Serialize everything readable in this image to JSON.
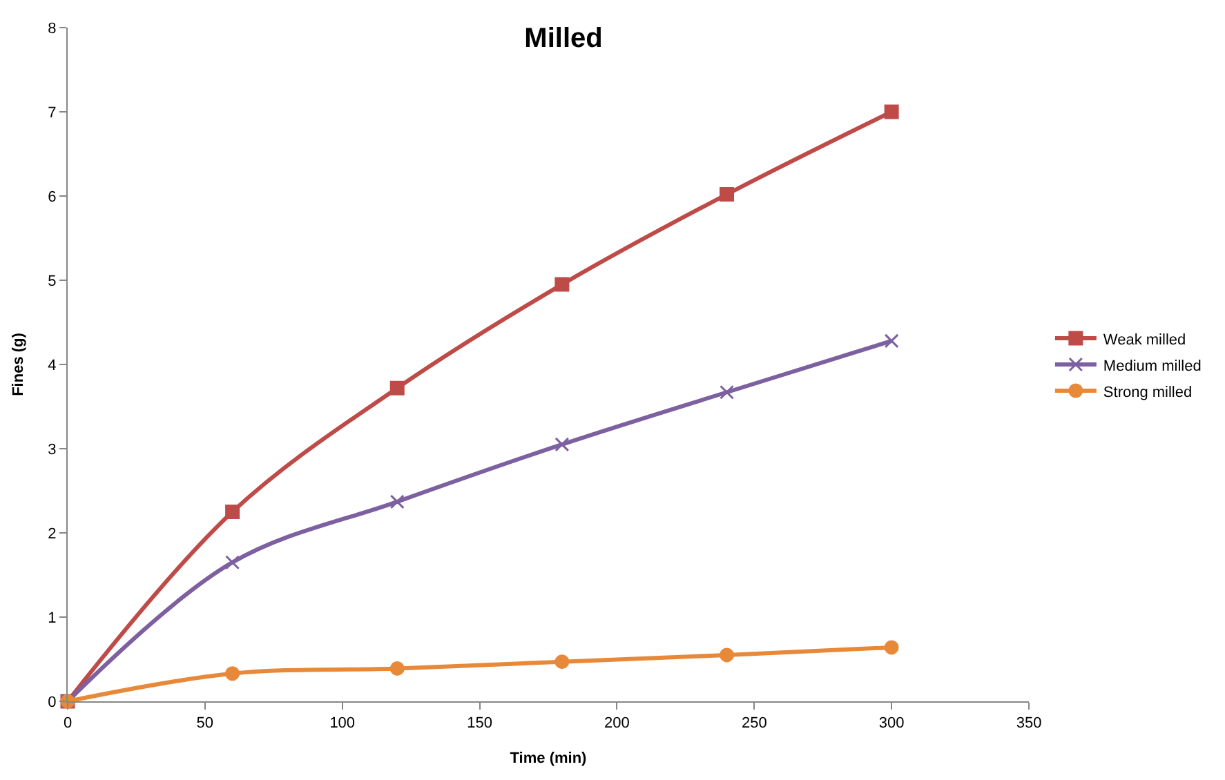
{
  "chart_data": {
    "type": "line",
    "title": "Milled",
    "xlabel": "Time (min)",
    "ylabel": "Fines (g)",
    "x": [
      0,
      60,
      120,
      180,
      240,
      300
    ],
    "series": [
      {
        "name": "Weak milled",
        "color": "#be4b48",
        "marker": "square",
        "values": [
          0,
          2.25,
          3.72,
          4.95,
          6.02,
          7.0
        ]
      },
      {
        "name": "Medium milled",
        "color": "#7d60a0",
        "marker": "cross",
        "values": [
          0,
          1.65,
          2.37,
          3.05,
          3.67,
          4.28
        ]
      },
      {
        "name": "Strong milled",
        "color": "#e8893a",
        "marker": "circle",
        "values": [
          0,
          0.33,
          0.39,
          0.47,
          0.55,
          0.64
        ]
      }
    ],
    "xlim": [
      0,
      350
    ],
    "xticks": [
      0,
      50,
      100,
      150,
      200,
      250,
      300,
      350
    ],
    "ylim": [
      0,
      8
    ],
    "yticks": [
      0,
      1,
      2,
      3,
      4,
      5,
      6,
      7,
      8
    ],
    "legend": "right",
    "line_style": "solid"
  }
}
